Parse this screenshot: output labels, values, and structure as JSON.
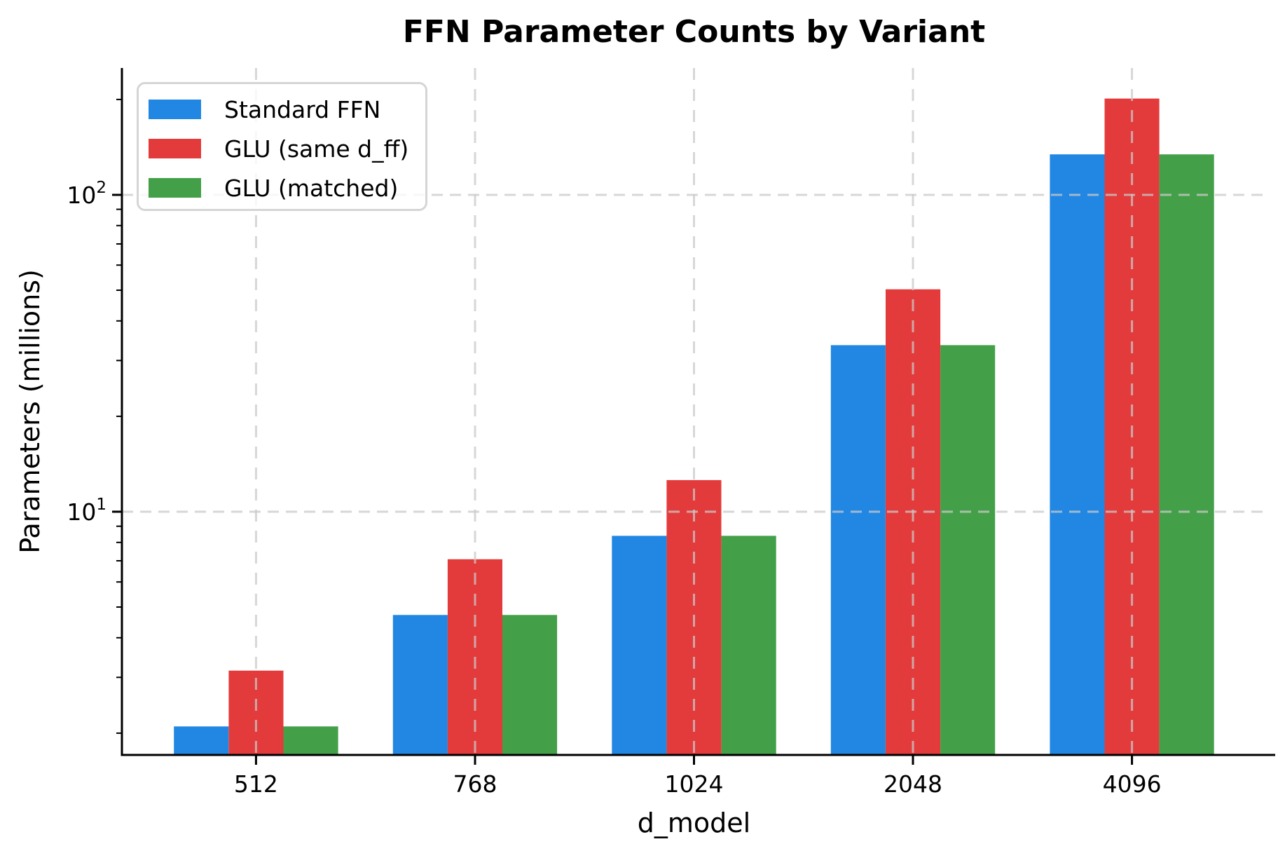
{
  "title": "FFN Parameter Counts by Variant",
  "chart_data": {
    "type": "bar",
    "title": "FFN Parameter Counts by Variant",
    "xlabel": "d_model",
    "ylabel": "Parameters (millions)",
    "yscale": "log",
    "ylim": [
      1.707,
      251.4
    ],
    "grid": "dashed, major ticks, drawn above bars",
    "legend_position": "upper left",
    "categories": [
      "512",
      "768",
      "1024",
      "2048",
      "4096"
    ],
    "series": [
      {
        "name": "Standard FFN",
        "color": "#2187E3",
        "values": [
          2.1,
          4.72,
          8.39,
          33.55,
          134.22
        ]
      },
      {
        "name": "GLU (same d_ff)",
        "color": "#E33B3B",
        "values": [
          3.15,
          7.08,
          12.58,
          50.33,
          201.33
        ]
      },
      {
        "name": "GLU (matched)",
        "color": "#43A048",
        "values": [
          2.1,
          4.72,
          8.39,
          33.55,
          134.22
        ]
      }
    ],
    "y_major_ticks": [
      {
        "value": 10,
        "base": "10",
        "exp": "1"
      },
      {
        "value": 100,
        "base": "10",
        "exp": "2"
      }
    ]
  },
  "colors": {
    "axis": "#000000",
    "grid": "#c9c9c9",
    "background": "#ffffff"
  }
}
